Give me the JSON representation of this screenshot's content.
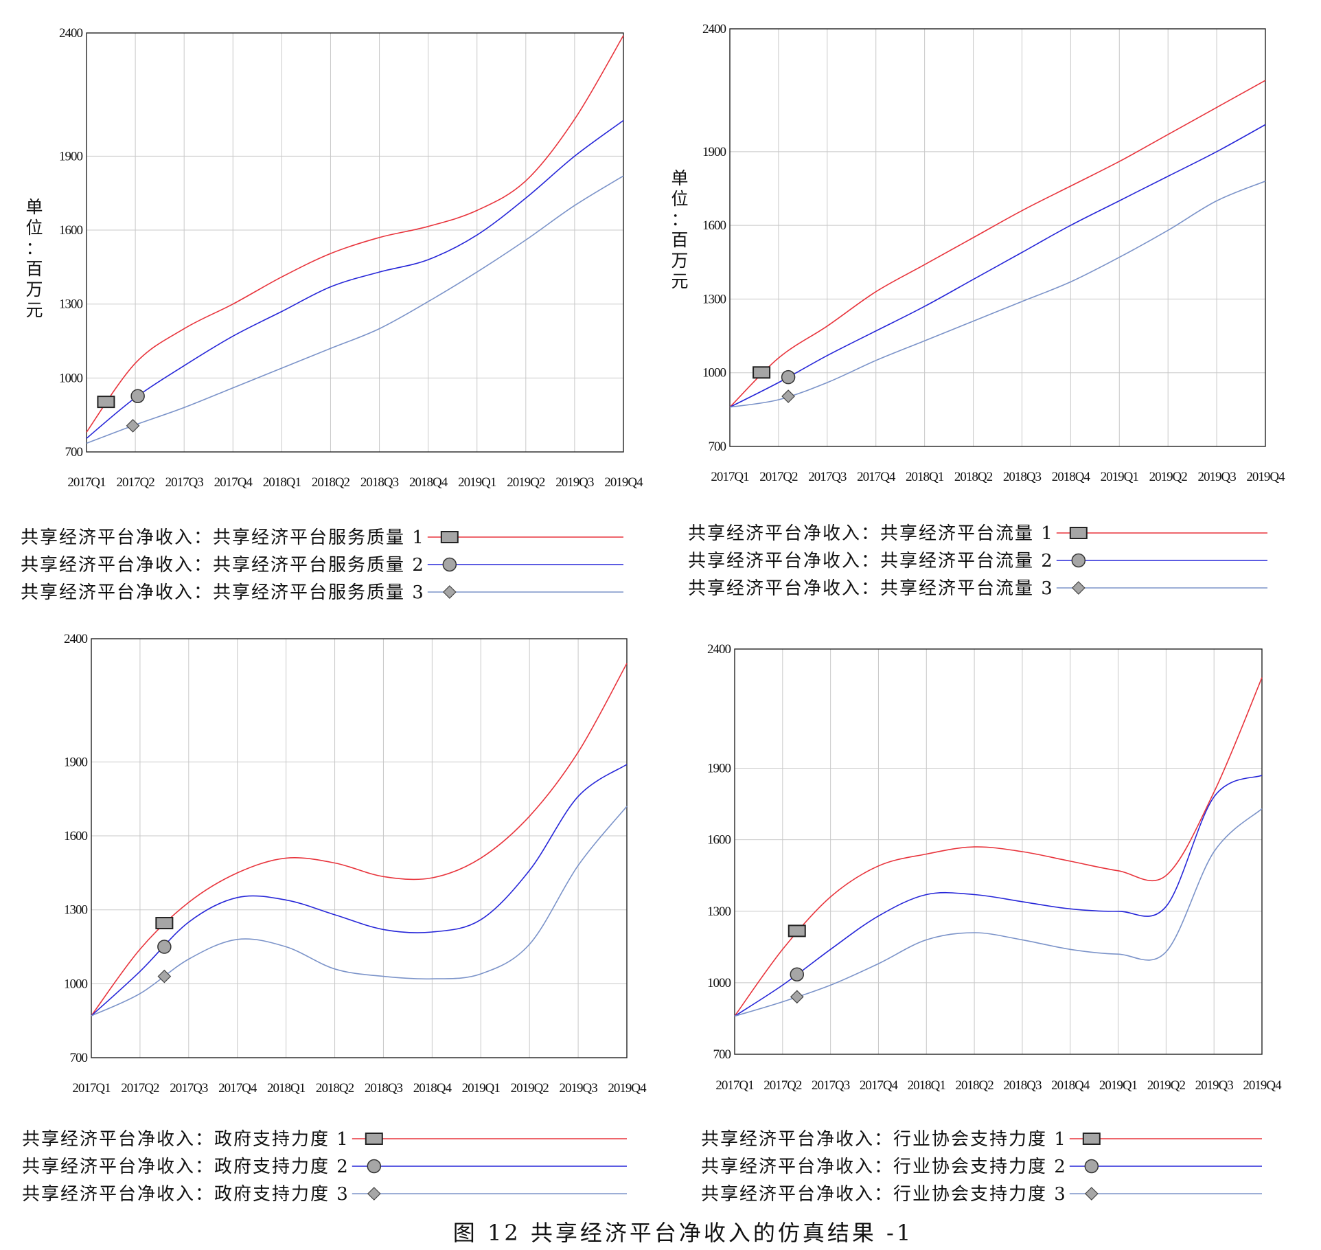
{
  "caption": "图 12   共享经济平台净收入的仿真结果 -1",
  "colors": {
    "series1": "#e8343c",
    "series2": "#2626d8",
    "series3": "#7b93c9",
    "grid": "#c8c8c8",
    "marker_fill": "#a6a6a6"
  },
  "chart_data": [
    {
      "type": "line",
      "x": [
        "2017Q1",
        "2017Q2",
        "2017Q3",
        "2017Q4",
        "2018Q1",
        "2018Q2",
        "2018Q3",
        "2018Q4",
        "2019Q1",
        "2019Q2",
        "2019Q3",
        "2019Q4"
      ],
      "y_ticks": [
        "2400",
        "1900",
        "1600",
        "1300",
        "1000",
        "700"
      ],
      "ylim": [
        700,
        2400
      ],
      "ylabel": "单位：百万元",
      "grid": true,
      "series": [
        {
          "name": "共享经济平台净收入：共享经济平台服务质量 1",
          "marker": "square",
          "marker_at": 0.4,
          "values": [
            780,
            1060,
            1200,
            1300,
            1410,
            1505,
            1570,
            1615,
            1680,
            1800,
            2050,
            2390
          ]
        },
        {
          "name": "共享经济平台净收入：共享经济平台服务质量 2",
          "marker": "circle",
          "marker_at": 1.05,
          "values": [
            755,
            920,
            1050,
            1170,
            1270,
            1370,
            1430,
            1480,
            1580,
            1730,
            1900,
            2045
          ]
        },
        {
          "name": "共享经济平台净收入：共享经济平台服务质量 3",
          "marker": "diamond",
          "marker_at": 0.95,
          "values": [
            735,
            810,
            880,
            960,
            1040,
            1120,
            1200,
            1310,
            1430,
            1560,
            1700,
            1820
          ]
        }
      ]
    },
    {
      "type": "line",
      "x": [
        "2017Q1",
        "2017Q2",
        "2017Q3",
        "2017Q4",
        "2018Q1",
        "2018Q2",
        "2018Q3",
        "2018Q4",
        "2019Q1",
        "2019Q2",
        "2019Q3",
        "2019Q4"
      ],
      "y_ticks": [
        "2400",
        "1900",
        "1600",
        "1300",
        "1000",
        "700"
      ],
      "ylim": [
        700,
        2400
      ],
      "ylabel": "单位：百万元",
      "grid": true,
      "series": [
        {
          "name": "共享经济平台净收入：共享经济平台流量 1",
          "marker": "square",
          "marker_at": 0.65,
          "values": [
            860,
            1060,
            1190,
            1330,
            1440,
            1550,
            1660,
            1760,
            1860,
            1970,
            2080,
            2190
          ]
        },
        {
          "name": "共享经济平台净收入：共享经济平台流量 2",
          "marker": "circle",
          "marker_at": 1.2,
          "values": [
            860,
            960,
            1070,
            1170,
            1270,
            1380,
            1490,
            1600,
            1700,
            1800,
            1900,
            2010
          ]
        },
        {
          "name": "共享经济平台净收入：共享经济平台流量 3",
          "marker": "diamond",
          "marker_at": 1.2,
          "values": [
            860,
            890,
            960,
            1050,
            1130,
            1210,
            1290,
            1370,
            1470,
            1580,
            1700,
            1780
          ]
        }
      ]
    },
    {
      "type": "line",
      "x": [
        "2017Q1",
        "2017Q2",
        "2017Q3",
        "2017Q4",
        "2018Q1",
        "2018Q2",
        "2018Q3",
        "2018Q4",
        "2019Q1",
        "2019Q2",
        "2019Q3",
        "2019Q4"
      ],
      "y_ticks": [
        "2400",
        "1900",
        "1600",
        "1300",
        "1000",
        "700"
      ],
      "ylim": [
        700,
        2400
      ],
      "grid": true,
      "series": [
        {
          "name": "共享经济平台净收入：政府支持力度 1",
          "marker": "square",
          "marker_at": 1.5,
          "values": [
            870,
            1140,
            1330,
            1450,
            1510,
            1490,
            1435,
            1430,
            1510,
            1680,
            1940,
            2300
          ]
        },
        {
          "name": "共享经济平台净收入：政府支持力度 2",
          "marker": "circle",
          "marker_at": 1.5,
          "values": [
            870,
            1050,
            1250,
            1350,
            1340,
            1280,
            1220,
            1210,
            1260,
            1460,
            1760,
            1890
          ]
        },
        {
          "name": "共享经济平台净收入：政府支持力度 3",
          "marker": "diamond",
          "marker_at": 1.5,
          "values": [
            870,
            960,
            1100,
            1180,
            1150,
            1060,
            1030,
            1020,
            1040,
            1160,
            1480,
            1720
          ]
        }
      ]
    },
    {
      "type": "line",
      "x": [
        "2017Q1",
        "2017Q2",
        "2017Q3",
        "2017Q4",
        "2018Q1",
        "2018Q2",
        "2018Q3",
        "2018Q4",
        "2019Q1",
        "2019Q2",
        "2019Q3",
        "2019Q4"
      ],
      "y_ticks": [
        "2400",
        "1900",
        "1600",
        "1300",
        "1000",
        "700"
      ],
      "ylim": [
        700,
        2400
      ],
      "grid": true,
      "series": [
        {
          "name": "共享经济平台净收入：行业协会支持力度 1",
          "marker": "square",
          "marker_at": 1.3,
          "values": [
            860,
            1140,
            1360,
            1490,
            1540,
            1570,
            1550,
            1510,
            1470,
            1450,
            1800,
            2280
          ]
        },
        {
          "name": "共享经济平台净收入：行业协会支持力度 2",
          "marker": "circle",
          "marker_at": 1.3,
          "values": [
            860,
            990,
            1140,
            1280,
            1370,
            1370,
            1340,
            1310,
            1300,
            1320,
            1780,
            1870
          ]
        },
        {
          "name": "共享经济平台净收入：行业协会支持力度 3",
          "marker": "diamond",
          "marker_at": 1.3,
          "values": [
            860,
            920,
            990,
            1080,
            1180,
            1210,
            1180,
            1140,
            1120,
            1130,
            1550,
            1730
          ]
        }
      ]
    }
  ]
}
